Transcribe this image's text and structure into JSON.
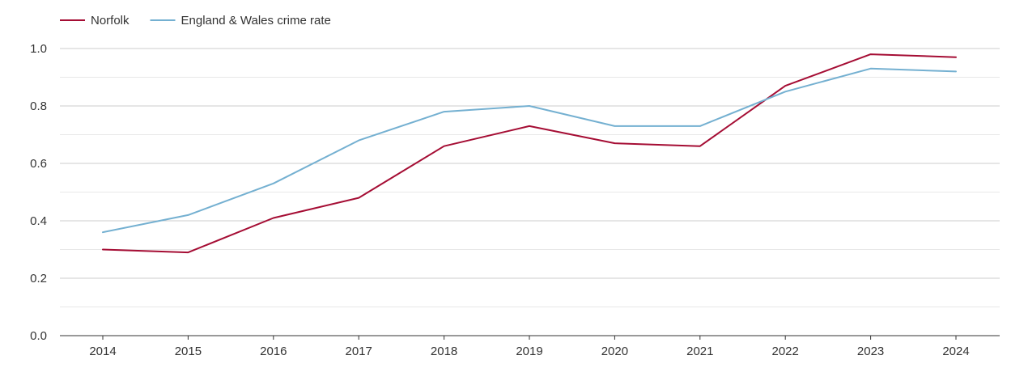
{
  "chart_data": {
    "type": "line",
    "title": "",
    "xlabel": "",
    "ylabel": "",
    "x": [
      "2014",
      "2015",
      "2016",
      "2017",
      "2018",
      "2019",
      "2020",
      "2021",
      "2022",
      "2023",
      "2024"
    ],
    "ylim": [
      0,
      1.0
    ],
    "yticks": [
      "0.0",
      "0.2",
      "0.4",
      "0.6",
      "0.8",
      "1.0"
    ],
    "grid": true,
    "legend_position": "top-left",
    "series": [
      {
        "name": "Norfolk",
        "color": "#a50d34",
        "values": [
          0.3,
          0.29,
          0.41,
          0.48,
          0.66,
          0.73,
          0.67,
          0.66,
          0.87,
          0.98,
          0.97
        ]
      },
      {
        "name": "England & Wales crime rate",
        "color": "#74b0d1",
        "values": [
          0.36,
          0.42,
          0.53,
          0.68,
          0.78,
          0.8,
          0.73,
          0.73,
          0.85,
          0.93,
          0.92
        ]
      }
    ]
  }
}
